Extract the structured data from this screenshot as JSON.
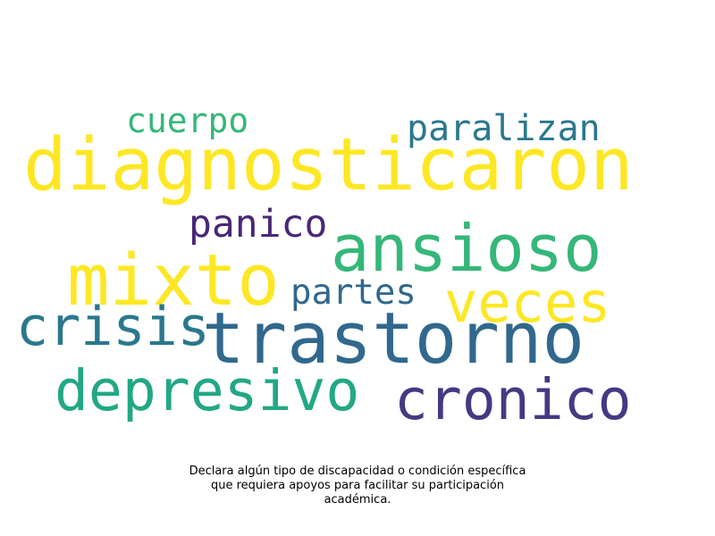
{
  "wordcloud": {
    "words": [
      {
        "text": "cuerpo",
        "color": "#35b779"
      },
      {
        "text": "paralizan",
        "color": "#2a788e"
      },
      {
        "text": "diagnosticaron",
        "color": "#fde725"
      },
      {
        "text": "panico",
        "color": "#482878"
      },
      {
        "text": "ansioso",
        "color": "#35b779"
      },
      {
        "text": "mixto",
        "color": "#fde725"
      },
      {
        "text": "partes",
        "color": "#31688e"
      },
      {
        "text": "veces",
        "color": "#fde725"
      },
      {
        "text": "crisis",
        "color": "#2a788e"
      },
      {
        "text": "trastorno",
        "color": "#31688e"
      },
      {
        "text": "depresivo",
        "color": "#22a884"
      },
      {
        "text": "cronico",
        "color": "#443983"
      }
    ]
  },
  "caption": {
    "line1": "Declara algún tipo de discapacidad o condición específica",
    "line2": "que requiera apoyos para facilitar su participación",
    "line3": "académica."
  }
}
